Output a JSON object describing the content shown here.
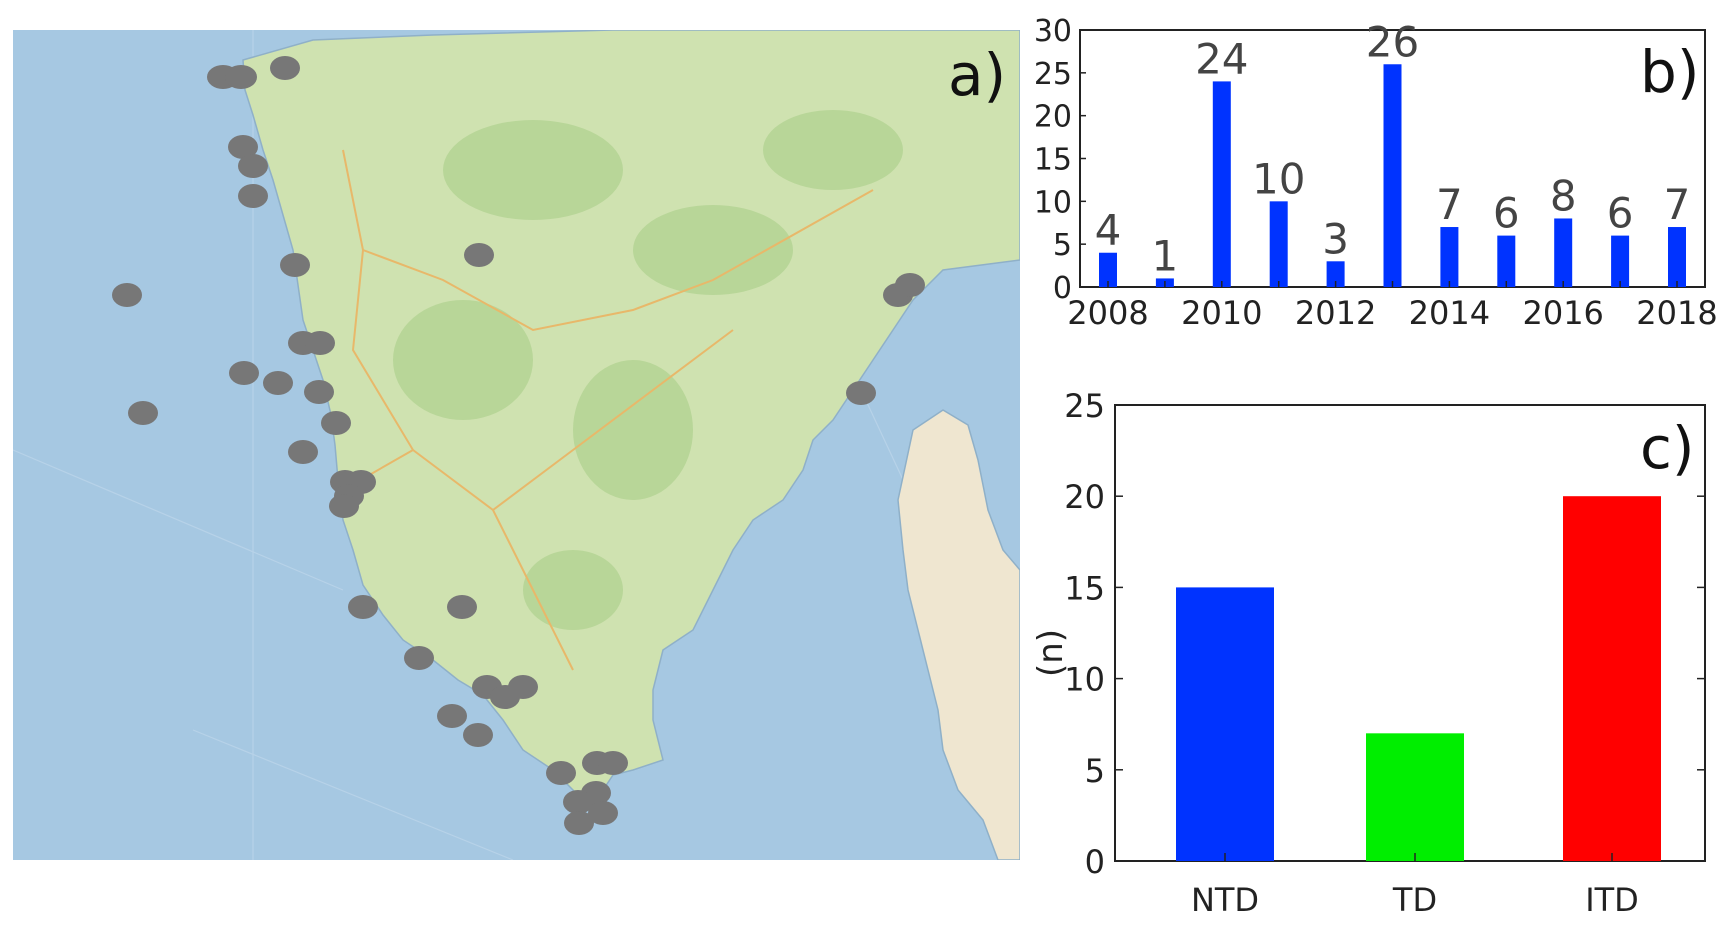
{
  "panels": {
    "a": {
      "letter": "a)"
    },
    "b": {
      "letter": "b)"
    },
    "c": {
      "letter": "c)"
    }
  },
  "colors": {
    "sea": "#a6c8e2",
    "land": "#cfe2b0",
    "land_dark": "#b8d698",
    "coast_strip": "#efe6d0",
    "marker": "#777777",
    "blue": "#0033ff",
    "green": "#00ee00",
    "red": "#ff0000"
  },
  "chart_data": [
    {
      "panel": "b",
      "type": "bar",
      "categories": [
        "2008",
        "2009",
        "2010",
        "2011",
        "2012",
        "2013",
        "2014",
        "2015",
        "2016",
        "2017",
        "2018"
      ],
      "values": [
        4,
        1,
        24,
        10,
        3,
        26,
        7,
        6,
        8,
        6,
        7
      ],
      "data_labels": [
        "4",
        "1",
        "24",
        "10",
        "3",
        "26",
        "7",
        "6",
        "8",
        "6",
        "7"
      ],
      "x_tick_labels": [
        "2008",
        "2010",
        "2012",
        "2014",
        "2016",
        "2018"
      ],
      "y_tick_labels": [
        "0",
        "5",
        "10",
        "15",
        "20",
        "25",
        "30"
      ],
      "ylim": [
        0,
        30
      ],
      "color": "#0033ff",
      "grid": false
    },
    {
      "panel": "c",
      "type": "bar",
      "categories": [
        "NTD",
        "TD",
        "ITD"
      ],
      "values": [
        15,
        7,
        20
      ],
      "colors": [
        "#0033ff",
        "#00ee00",
        "#ff0000"
      ],
      "ylabel": "(n)",
      "y_tick_labels": [
        "0",
        "5",
        "10",
        "15",
        "20",
        "25"
      ],
      "ylim": [
        0,
        25
      ],
      "grid": false
    }
  ]
}
